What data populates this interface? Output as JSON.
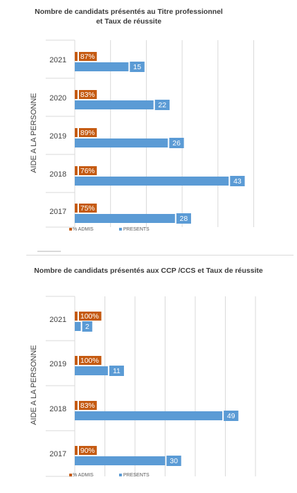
{
  "colors": {
    "admis": "#c55a11",
    "presents": "#5b9bd5",
    "grid": "#d9d9d9"
  },
  "chart_data": [
    {
      "type": "bar",
      "orientation": "horizontal",
      "title_line1": "Nombre de candidats présentés au Titre professionnel",
      "title_line2": "et Taux de réussite",
      "ylabel": "AIDE A LA PERSONNE",
      "categories": [
        "2021",
        "2020",
        "2019",
        "2018",
        "2017"
      ],
      "series": [
        {
          "name": "% ADMIS",
          "values": [
            87,
            83,
            89,
            76,
            75
          ],
          "labels": [
            "87%",
            "83%",
            "89%",
            "76%",
            "75%"
          ]
        },
        {
          "name": "PRESENTS",
          "values": [
            15,
            22,
            26,
            43,
            28
          ],
          "labels": [
            "15",
            "22",
            "26",
            "43",
            "28"
          ]
        }
      ],
      "xlim": [
        0,
        50
      ],
      "grid": true,
      "legend_position": "bottom-left"
    },
    {
      "type": "bar",
      "orientation": "horizontal",
      "title": "Nombre de candidats présentés aux CCP /CCS et Taux de réussite",
      "ylabel": "AIDE A LA PERSONNE",
      "categories": [
        "2021",
        "2019",
        "2018",
        "2017"
      ],
      "series": [
        {
          "name": "% ADMIS",
          "values": [
            100,
            100,
            83,
            90
          ],
          "labels": [
            "100%",
            "100%",
            "83%",
            "90%"
          ]
        },
        {
          "name": "PRESENTS",
          "values": [
            2,
            11,
            49,
            30
          ],
          "labels": [
            "2",
            "11",
            "49",
            "30"
          ]
        }
      ],
      "xlim": [
        0,
        60
      ],
      "grid": true,
      "legend_position": "bottom-left"
    }
  ]
}
